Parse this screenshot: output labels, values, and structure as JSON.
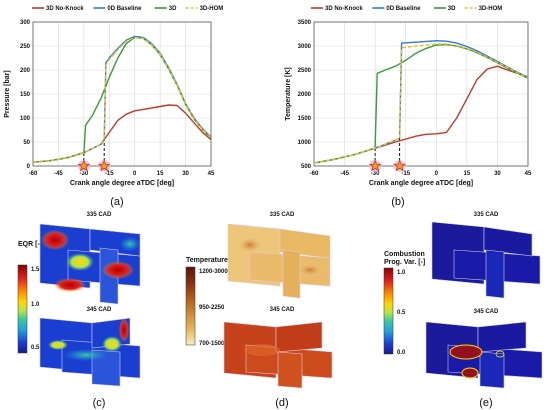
{
  "panels": {
    "a": "(a)",
    "b": "(b)",
    "c": "(c)",
    "d": "(d)",
    "e": "(e)"
  },
  "legend": {
    "entries": [
      {
        "name": "3D No-Knock",
        "color": "#c0392b",
        "dash": false
      },
      {
        "name": "0D Baseline",
        "color": "#2e7bd6",
        "dash": false
      },
      {
        "name": "3D",
        "color": "#3a9a3a",
        "dash": false
      },
      {
        "name": "3D-HOM",
        "color": "#e6c229",
        "dash": true
      }
    ]
  },
  "chart_data": [
    {
      "type": "line",
      "panel": "a",
      "xlabel": "Crank angle degree aTDC [deg]",
      "ylabel": "Pressure [bar]",
      "xlim": [
        -60,
        45
      ],
      "ylim": [
        0,
        300
      ],
      "xticks": [
        -60,
        -45,
        -30,
        -15,
        0,
        15,
        30,
        45
      ],
      "yticks": [
        0,
        50,
        100,
        150,
        200,
        250,
        300
      ],
      "grid": true,
      "legend_position": "top",
      "markers": [
        {
          "x": -30,
          "y": 0,
          "shape": "star"
        },
        {
          "x": -18,
          "y": 0,
          "shape": "star"
        }
      ],
      "guides": [
        {
          "x": -30,
          "from_y": 0,
          "to_y": 30
        },
        {
          "x": -18,
          "from_y": 0,
          "to_y": 52
        }
      ],
      "series": [
        {
          "name": "3D No-Knock",
          "color": "#c0392b",
          "x": [
            -60,
            -50,
            -40,
            -30,
            -20,
            -15,
            -10,
            -5,
            0,
            5,
            10,
            15,
            20,
            25,
            30,
            35,
            40,
            45
          ],
          "y": [
            8,
            11,
            17,
            28,
            45,
            70,
            95,
            108,
            115,
            118,
            121,
            124,
            127,
            126,
            110,
            90,
            70,
            55
          ]
        },
        {
          "name": "0D Baseline",
          "color": "#2e7bd6",
          "x": [
            -60,
            -50,
            -40,
            -30,
            -20,
            -18,
            -17,
            -15,
            -10,
            -5,
            0,
            5,
            10,
            15,
            20,
            25,
            30,
            35,
            40,
            45
          ],
          "y": [
            8,
            11,
            17,
            28,
            45,
            52,
            215,
            225,
            245,
            262,
            270,
            268,
            255,
            235,
            205,
            170,
            130,
            100,
            78,
            60
          ]
        },
        {
          "name": "3D",
          "color": "#3a9a3a",
          "x": [
            -60,
            -50,
            -40,
            -35,
            -30,
            -29,
            -25,
            -20,
            -15,
            -10,
            -5,
            0,
            5,
            10,
            15,
            20,
            25,
            30,
            35,
            40,
            45
          ],
          "y": [
            8,
            11,
            17,
            22,
            28,
            85,
            105,
            140,
            185,
            225,
            255,
            268,
            266,
            252,
            232,
            202,
            168,
            128,
            98,
            76,
            58
          ]
        },
        {
          "name": "3D-HOM",
          "color": "#e6c229",
          "dash": true,
          "x": [
            -60,
            -50,
            -40,
            -30,
            -20,
            -18,
            -17,
            -15,
            -10,
            -5,
            0,
            5,
            10,
            15,
            20,
            25,
            30,
            35,
            40,
            45
          ],
          "y": [
            8,
            11,
            17,
            28,
            45,
            52,
            210,
            222,
            242,
            260,
            268,
            266,
            253,
            233,
            203,
            168,
            128,
            98,
            76,
            58
          ]
        }
      ]
    },
    {
      "type": "line",
      "panel": "b",
      "xlabel": "Crank angle degree aTDC [deg]",
      "ylabel": "Temperature [K]",
      "xlim": [
        -60,
        45
      ],
      "ylim": [
        500,
        3500
      ],
      "xticks": [
        -60,
        -45,
        -30,
        -15,
        0,
        15,
        30,
        45
      ],
      "yticks": [
        500,
        1000,
        1500,
        2000,
        2500,
        3000,
        3500
      ],
      "grid": true,
      "legend_position": "top",
      "markers": [
        {
          "x": -30,
          "y": 500,
          "shape": "star"
        },
        {
          "x": -18,
          "y": 500,
          "shape": "star"
        }
      ],
      "guides": [
        {
          "x": -30,
          "from_y": 500,
          "to_y": 870
        },
        {
          "x": -18,
          "from_y": 500,
          "to_y": 1080
        }
      ],
      "series": [
        {
          "name": "3D No-Knock",
          "color": "#c0392b",
          "x": [
            -60,
            -50,
            -40,
            -30,
            -20,
            -10,
            -5,
            0,
            5,
            10,
            15,
            20,
            25,
            30,
            35,
            40,
            45
          ],
          "y": [
            560,
            640,
            740,
            870,
            1000,
            1120,
            1160,
            1170,
            1200,
            1500,
            1900,
            2300,
            2520,
            2580,
            2500,
            2430,
            2350
          ]
        },
        {
          "name": "0D Baseline",
          "color": "#2e7bd6",
          "x": [
            -60,
            -50,
            -40,
            -30,
            -20,
            -18,
            -17,
            -10,
            0,
            5,
            10,
            15,
            20,
            25,
            30,
            35,
            40,
            45
          ],
          "y": [
            560,
            640,
            740,
            870,
            1040,
            1080,
            3060,
            3080,
            3110,
            3100,
            3060,
            2990,
            2900,
            2790,
            2680,
            2560,
            2450,
            2350
          ]
        },
        {
          "name": "3D",
          "color": "#3a9a3a",
          "x": [
            -60,
            -50,
            -40,
            -30,
            -29,
            -25,
            -20,
            -15,
            -10,
            -5,
            0,
            5,
            10,
            15,
            20,
            25,
            30,
            35,
            40,
            45
          ],
          "y": [
            560,
            640,
            740,
            870,
            2430,
            2500,
            2580,
            2700,
            2850,
            2950,
            3020,
            3030,
            3000,
            2940,
            2860,
            2760,
            2650,
            2540,
            2430,
            2330
          ]
        },
        {
          "name": "3D-HOM",
          "color": "#e6c229",
          "dash": true,
          "x": [
            -60,
            -50,
            -40,
            -30,
            -20,
            -18,
            -17,
            -10,
            0,
            5,
            10,
            15,
            20,
            25,
            30,
            35,
            40,
            45
          ],
          "y": [
            560,
            640,
            740,
            870,
            1040,
            1080,
            2960,
            3000,
            3040,
            3040,
            3010,
            2950,
            2870,
            2770,
            2660,
            2550,
            2440,
            2340
          ]
        }
      ]
    },
    {
      "type": "heatmap",
      "panel": "c",
      "colorbar_title": "EQR [-]",
      "colorbar_ticks": [
        "1.5",
        "1.0",
        "0.5"
      ],
      "colorbar_colors": [
        "#8b0000",
        "#e02020",
        "#ff8c00",
        "#ffd700",
        "#b7e34a",
        "#36c9a0",
        "#22a0e0",
        "#1a3fd0",
        "#1a1a8c"
      ],
      "snapshots": [
        "335 CAD",
        "345 CAD"
      ]
    },
    {
      "type": "heatmap",
      "panel": "d",
      "colorbar_title": "Temperature [K]",
      "colorbar_ticks": [
        "1200-3000",
        "950-2250",
        "700-1500"
      ],
      "colorbar_colors": [
        "#5a1608",
        "#8a2f10",
        "#b25a1c",
        "#cf8a34",
        "#e3b35c",
        "#f0d48c",
        "#f8ebbf"
      ],
      "snapshots": [
        "335 CAD",
        "345 CAD"
      ]
    },
    {
      "type": "heatmap",
      "panel": "e",
      "colorbar_title": "Combustion Prog. Var. [-]",
      "colorbar_title_lines": [
        "Combustion",
        "Prog. Var. [-]"
      ],
      "colorbar_ticks": [
        "1.0",
        "0.5",
        "0.0"
      ],
      "colorbar_colors": [
        "#8b0000",
        "#e02020",
        "#ff8c00",
        "#ffd700",
        "#b7e34a",
        "#36c9a0",
        "#22a0e0",
        "#1a3fd0",
        "#1a1a8c"
      ],
      "snapshots": [
        "335 CAD",
        "345 CAD"
      ]
    }
  ]
}
